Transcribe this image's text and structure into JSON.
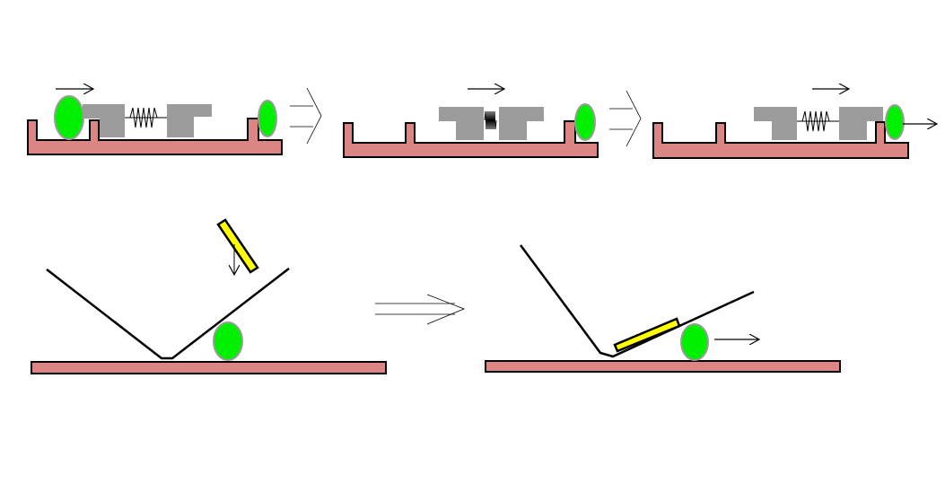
{
  "colors": {
    "rail_fill": "#dc8585",
    "block_fill": "#9b9b9b",
    "ball_fill": "#00f000",
    "ball_stroke": "#9b9b9b",
    "stick_fill": "#ffff00",
    "line": "#000000",
    "background": "#ffffff"
  },
  "icons": {
    "motion_arrow": "right-arrow-icon",
    "transition_arrow": "double-outline-arrow-icon",
    "spring": "spring-icon"
  }
}
